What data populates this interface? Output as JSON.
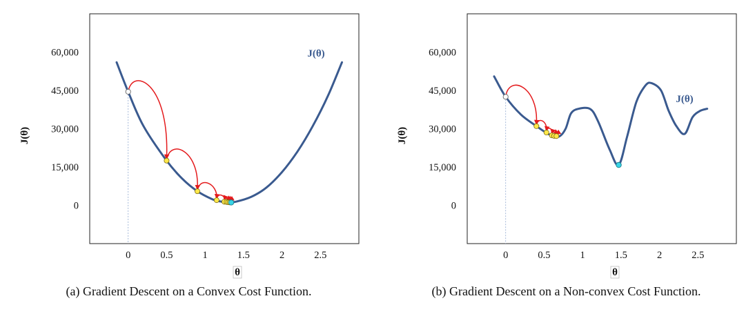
{
  "colors": {
    "curve": "#3a5a8f",
    "jump": "#e41a1c",
    "point": "#ffe84a",
    "start": "#ffffff",
    "final": "#38d4e6",
    "frame": "#222222",
    "guide": "#8fa8d0"
  },
  "chart_data": [
    {
      "type": "line",
      "panel": "a",
      "caption": "(a) Gradient Descent on a Convex Cost Function.",
      "xlabel": "θ",
      "ylabel": "J(θ)",
      "curve_label": "J(θ)",
      "xlim": [
        -0.5,
        3.0
      ],
      "ylim": [
        -15000,
        75000
      ],
      "x_ticks": [
        0,
        0.5,
        1,
        1.5,
        2,
        2.5
      ],
      "x_tick_labels": [
        "0",
        "0.5",
        "1",
        "1.5",
        "2",
        "2.5"
      ],
      "y_ticks": [
        0,
        15000,
        30000,
        45000,
        60000
      ],
      "y_tick_labels": [
        "0",
        "15,000",
        "30,000",
        "45,000",
        "60,000"
      ],
      "grid": false,
      "series": [
        {
          "x": [
            -0.15,
            0.0,
            0.2,
            0.5,
            0.7,
            0.9,
            1.1,
            1.2,
            1.3,
            1.4,
            1.6,
            1.8,
            2.0,
            2.2,
            2.4,
            2.6,
            2.78
          ],
          "y": [
            56000,
            44500,
            31000,
            17500,
            10500,
            5500,
            2300,
            1500,
            1100,
            1400,
            3300,
            7000,
            13000,
            21000,
            31000,
            43000,
            56000
          ]
        }
      ],
      "start_point": {
        "x": 0.0,
        "y": 44500
      },
      "descent_points": [
        {
          "x": 0.5,
          "y": 17500
        },
        {
          "x": 0.9,
          "y": 5500
        },
        {
          "x": 1.15,
          "y": 2000
        },
        {
          "x": 1.25,
          "y": 1400
        },
        {
          "x": 1.28,
          "y": 1300
        },
        {
          "x": 1.3,
          "y": 1200
        },
        {
          "x": 1.32,
          "y": 1150
        }
      ],
      "final_point": {
        "x": 1.34,
        "y": 1100
      }
    },
    {
      "type": "line",
      "panel": "b",
      "caption": "(b) Gradient Descent on a Non-convex Cost Function.",
      "xlabel": "θ",
      "ylabel": "J(θ)",
      "curve_label": "J(θ)",
      "xlim": [
        -0.5,
        3.0
      ],
      "ylim": [
        -15000,
        75000
      ],
      "x_ticks": [
        0,
        0.5,
        1,
        1.5,
        2,
        2.5
      ],
      "x_tick_labels": [
        "0",
        "0.5",
        "1",
        "1.5",
        "2",
        "2.5"
      ],
      "y_ticks": [
        15000,
        30000,
        45000,
        60000,
        0
      ],
      "y_tick_labels": [
        "15,000",
        "30,000",
        "45,000",
        "60,000",
        "0"
      ],
      "grid": false,
      "series": [
        {
          "x": [
            -0.15,
            0.0,
            0.2,
            0.4,
            0.55,
            0.62,
            0.7,
            0.78,
            0.85,
            0.95,
            1.1,
            1.2,
            1.35,
            1.47,
            1.58,
            1.7,
            1.82,
            1.9,
            2.02,
            2.12,
            2.22,
            2.33,
            2.43,
            2.53,
            2.62
          ],
          "y": [
            50500,
            42500,
            35500,
            31000,
            28000,
            27200,
            27000,
            30000,
            36000,
            37800,
            37700,
            33000,
            22000,
            15800,
            27000,
            40500,
            47000,
            47800,
            45000,
            37000,
            31000,
            28000,
            34500,
            37000,
            37800
          ]
        }
      ],
      "start_point": {
        "x": 0.0,
        "y": 42500
      },
      "descent_points": [
        {
          "x": 0.4,
          "y": 31000
        },
        {
          "x": 0.53,
          "y": 28500
        },
        {
          "x": 0.6,
          "y": 27400
        },
        {
          "x": 0.63,
          "y": 27200
        },
        {
          "x": 0.66,
          "y": 27100
        }
      ],
      "final_point": {
        "x": 1.47,
        "y": 15800
      }
    }
  ]
}
